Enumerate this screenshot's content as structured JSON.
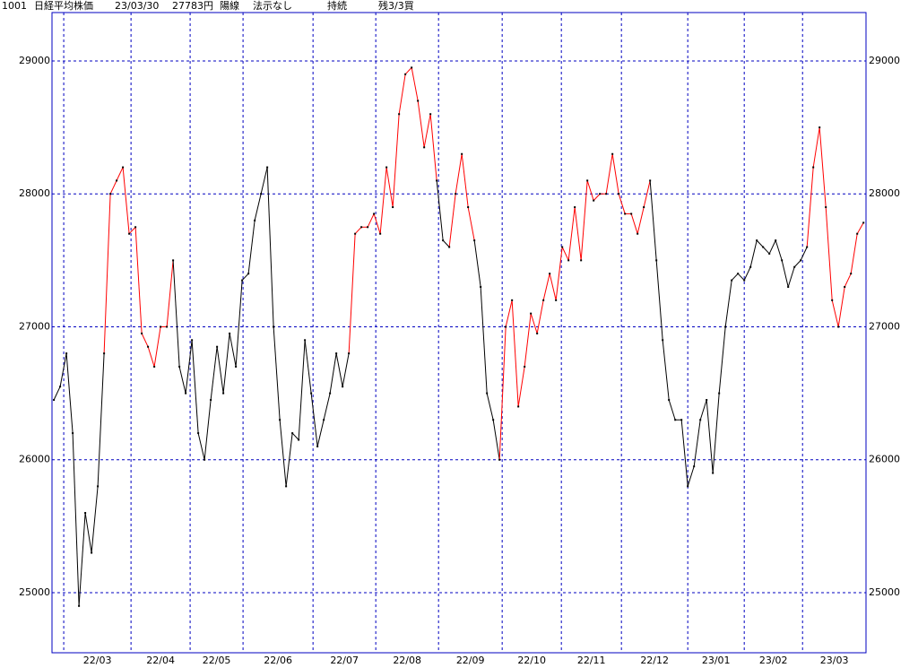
{
  "chart_data": {
    "type": "line",
    "header": [
      "1001",
      "日経平均株価",
      "23/03/30",
      "27783円",
      "陽線",
      "法示なし",
      "持続",
      "残3/3買"
    ],
    "values": [
      26450,
      26550,
      26800,
      26200,
      24900,
      25600,
      25300,
      25800,
      26800,
      28000,
      28100,
      28200,
      27700,
      27750,
      26950,
      26850,
      26700,
      27000,
      27000,
      27500,
      26700,
      26500,
      26900,
      26200,
      26000,
      26450,
      26850,
      26500,
      26950,
      26700,
      27350,
      27400,
      27800,
      28000,
      28200,
      27000,
      26300,
      25800,
      26200,
      26150,
      26900,
      26500,
      26100,
      26300,
      26500,
      26800,
      26550,
      26800,
      27700,
      27750,
      27750,
      27850,
      27700,
      28200,
      27900,
      28600,
      28900,
      28950,
      28700,
      28350,
      28600,
      28100,
      27650,
      27600,
      28000,
      28300,
      27900,
      27650,
      27300,
      26500,
      26300,
      26000,
      27000,
      27200,
      26400,
      26700,
      27100,
      26950,
      27200,
      27400,
      27200,
      27600,
      27500,
      27900,
      27500,
      28100,
      27950,
      28000,
      28000,
      28300,
      28000,
      27850,
      27850,
      27700,
      27900,
      28100,
      27500,
      26900,
      26450,
      26300,
      26300,
      25800,
      25950,
      26300,
      26450,
      25900,
      26500,
      27000,
      27350,
      27400,
      27350,
      27450,
      27650,
      27600,
      27550,
      27650,
      27500,
      27300,
      27450,
      27500,
      27600,
      28200,
      28500,
      27900,
      27200,
      27000,
      27300,
      27400,
      27700,
      27783
    ],
    "color": "#000000",
    "up_color": "#ff0000",
    "up_runs": [
      [
        9,
        19
      ],
      [
        48,
        61
      ],
      [
        64,
        67
      ],
      [
        72,
        95
      ],
      [
        121,
        129
      ]
    ],
    "xlim": [
      -0.3,
      129.4
    ],
    "xticks": [
      {
        "value": 1.57,
        "label": "22/03"
      },
      {
        "value": 12.29,
        "label": "22/04"
      },
      {
        "value": 21.71,
        "label": "22/05"
      },
      {
        "value": 30.14,
        "label": "22/06"
      },
      {
        "value": 41.29,
        "label": "22/07"
      },
      {
        "value": 51.29,
        "label": "22/08"
      },
      {
        "value": 61.29,
        "label": "22/09"
      },
      {
        "value": 71.43,
        "label": "22/10"
      },
      {
        "value": 80.86,
        "label": "22/11"
      },
      {
        "value": 90.43,
        "label": "22/12"
      },
      {
        "value": 101,
        "label": "23/01"
      },
      {
        "value": 110,
        "label": "23/02"
      },
      {
        "value": 119.29,
        "label": "23/03"
      }
    ],
    "ylim": [
      24548,
      29364
    ],
    "yticks": [
      25000,
      26000,
      27000,
      28000,
      29000
    ],
    "grid": true
  }
}
